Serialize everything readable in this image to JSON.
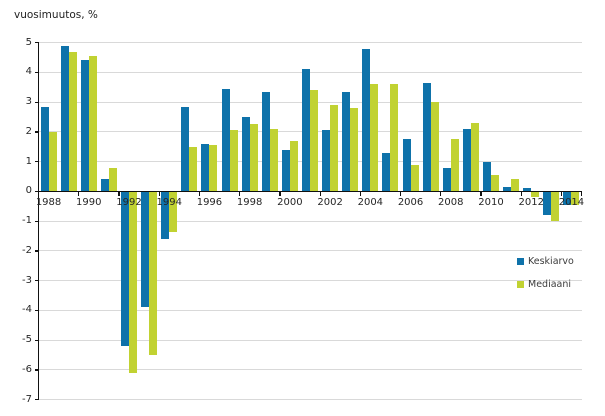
{
  "chart_data": {
    "type": "bar",
    "title": "vuosimuutos, %",
    "categories": [
      1988,
      1989,
      1990,
      1991,
      1992,
      1993,
      1994,
      1995,
      1996,
      1997,
      1998,
      1999,
      2000,
      2001,
      2002,
      2003,
      2004,
      2005,
      2006,
      2007,
      2008,
      2009,
      2010,
      2011,
      2012,
      2013,
      2014
    ],
    "x_tick_labels": [
      "1988",
      "1990",
      "1992",
      "1994",
      "1996",
      "1998",
      "2000",
      "2002",
      "2004",
      "2006",
      "2008",
      "2010",
      "2012",
      "2014"
    ],
    "series": [
      {
        "name": "Keskiarvo",
        "color": "#0e72aa",
        "values": [
          2.85,
          4.9,
          4.4,
          0.4,
          -5.2,
          -3.9,
          -1.6,
          2.85,
          1.6,
          3.45,
          2.5,
          3.35,
          1.4,
          4.1,
          2.05,
          3.35,
          4.8,
          1.3,
          1.75,
          3.65,
          0.8,
          2.1,
          1.0,
          0.15,
          0.1,
          -0.8,
          -0.45
        ]
      },
      {
        "name": "Mediaani",
        "color": "#c1d232",
        "values": [
          2.0,
          4.7,
          4.55,
          0.8,
          -6.1,
          -5.5,
          -1.35,
          1.5,
          1.55,
          2.05,
          2.25,
          2.1,
          1.7,
          3.4,
          2.9,
          2.8,
          3.6,
          3.6,
          0.9,
          3.0,
          1.75,
          2.3,
          0.55,
          0.4,
          -0.2,
          -1.0,
          -0.45
        ]
      }
    ],
    "y_ticks": [
      5,
      4,
      3,
      2,
      1,
      0,
      -1,
      -2,
      -3,
      -4,
      -5,
      -6,
      -7
    ],
    "ylim": [
      -7,
      5
    ],
    "xlabel": "",
    "ylabel": "vuosimuutos, %",
    "grid": true,
    "legend_position": "right"
  },
  "colors": {
    "gridline": "#d9d9d9",
    "axis": "#111111",
    "tick_text": "#262626",
    "legend_text": "#3c3c3c",
    "background": "#ffffff"
  }
}
